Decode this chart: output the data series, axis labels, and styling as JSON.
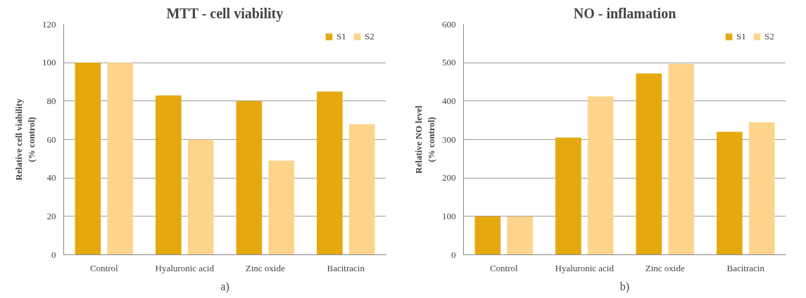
{
  "chart_data": [
    {
      "type": "bar",
      "title": "MTT - cell viability",
      "ylabel": "Relative cell viability\n(% control)",
      "categories": [
        "Control",
        "Hyaluronic acid",
        "Zinc oxide",
        "Bacitracin"
      ],
      "series": [
        {
          "name": "S1",
          "color": "#e5a90f",
          "values": [
            100,
            83,
            80,
            85
          ]
        },
        {
          "name": "S2",
          "color": "#fcd48c",
          "values": [
            100,
            60,
            49,
            68
          ]
        }
      ],
      "ylim": [
        0,
        120
      ],
      "yticks": [
        0,
        20,
        40,
        60,
        80,
        100,
        120
      ],
      "grid": "y",
      "legend": "top right",
      "annotations": [
        "a)"
      ]
    },
    {
      "type": "bar",
      "title": "NO - inflamation",
      "ylabel": "Relative NO level\n(% control)",
      "categories": [
        "Control",
        "Hyaluronic acid",
        "Zinc oxide",
        "Bacitracin"
      ],
      "series": [
        {
          "name": "S1",
          "color": "#e5a90f",
          "values": [
            100,
            305,
            472,
            320
          ]
        },
        {
          "name": "S2",
          "color": "#fcd48c",
          "values": [
            100,
            412,
            497,
            345
          ]
        }
      ],
      "ylim": [
        0,
        600
      ],
      "yticks": [
        0,
        100,
        200,
        300,
        400,
        500,
        600
      ],
      "grid": "y",
      "legend": "top right",
      "annotations": [
        "b)"
      ]
    }
  ]
}
